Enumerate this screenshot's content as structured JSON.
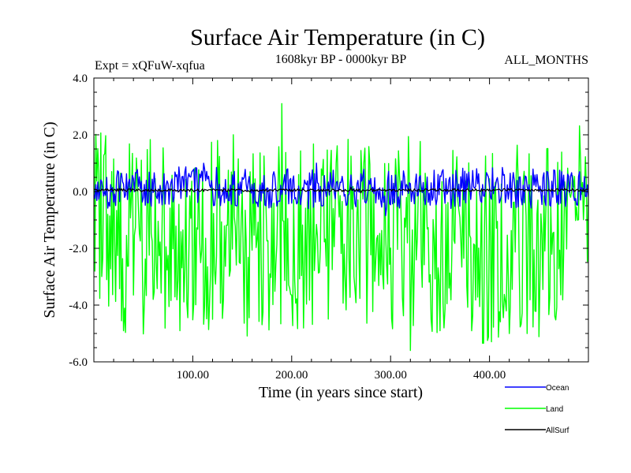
{
  "chart_data": {
    "type": "line",
    "title": "Surface Air Temperature (in C)",
    "subtitle_left": "Expt = xQFuW-xqfua",
    "subtitle_center": "1608kyr BP - 0000kyr BP",
    "subtitle_right": "ALL_MONTHS",
    "xlabel": "Time (in years since start)",
    "ylabel": "Surface Air Temperature (in C)",
    "xlim": [
      0,
      500
    ],
    "ylim": [
      -6.0,
      4.0
    ],
    "x_ticks": [
      100,
      200,
      300,
      400
    ],
    "x_tick_labels": [
      "100.00",
      "200.00",
      "300.00",
      "400.00"
    ],
    "y_ticks": [
      -6.0,
      -4.0,
      -2.0,
      0.0,
      2.0,
      4.0
    ],
    "y_tick_labels": [
      "-6.0",
      "-4.0",
      "-2.0",
      "0.0",
      "2.0",
      "4.0"
    ],
    "legend_position": "bottom-right, outside plot",
    "series": [
      {
        "name": "Land",
        "color": "#00ff00",
        "typical_range": [
          -5.0,
          2.0
        ],
        "max_value": 3.1,
        "min_value": -5.6
      },
      {
        "name": "Ocean",
        "color": "#0000ff",
        "typical_range": [
          -0.6,
          0.8
        ],
        "max_value": 1.0,
        "min_value": -0.85
      },
      {
        "name": "AllSurf",
        "color": "#000000",
        "typical_range": [
          0.0,
          0.1
        ],
        "max_value": 0.15,
        "min_value": -0.05
      }
    ]
  }
}
